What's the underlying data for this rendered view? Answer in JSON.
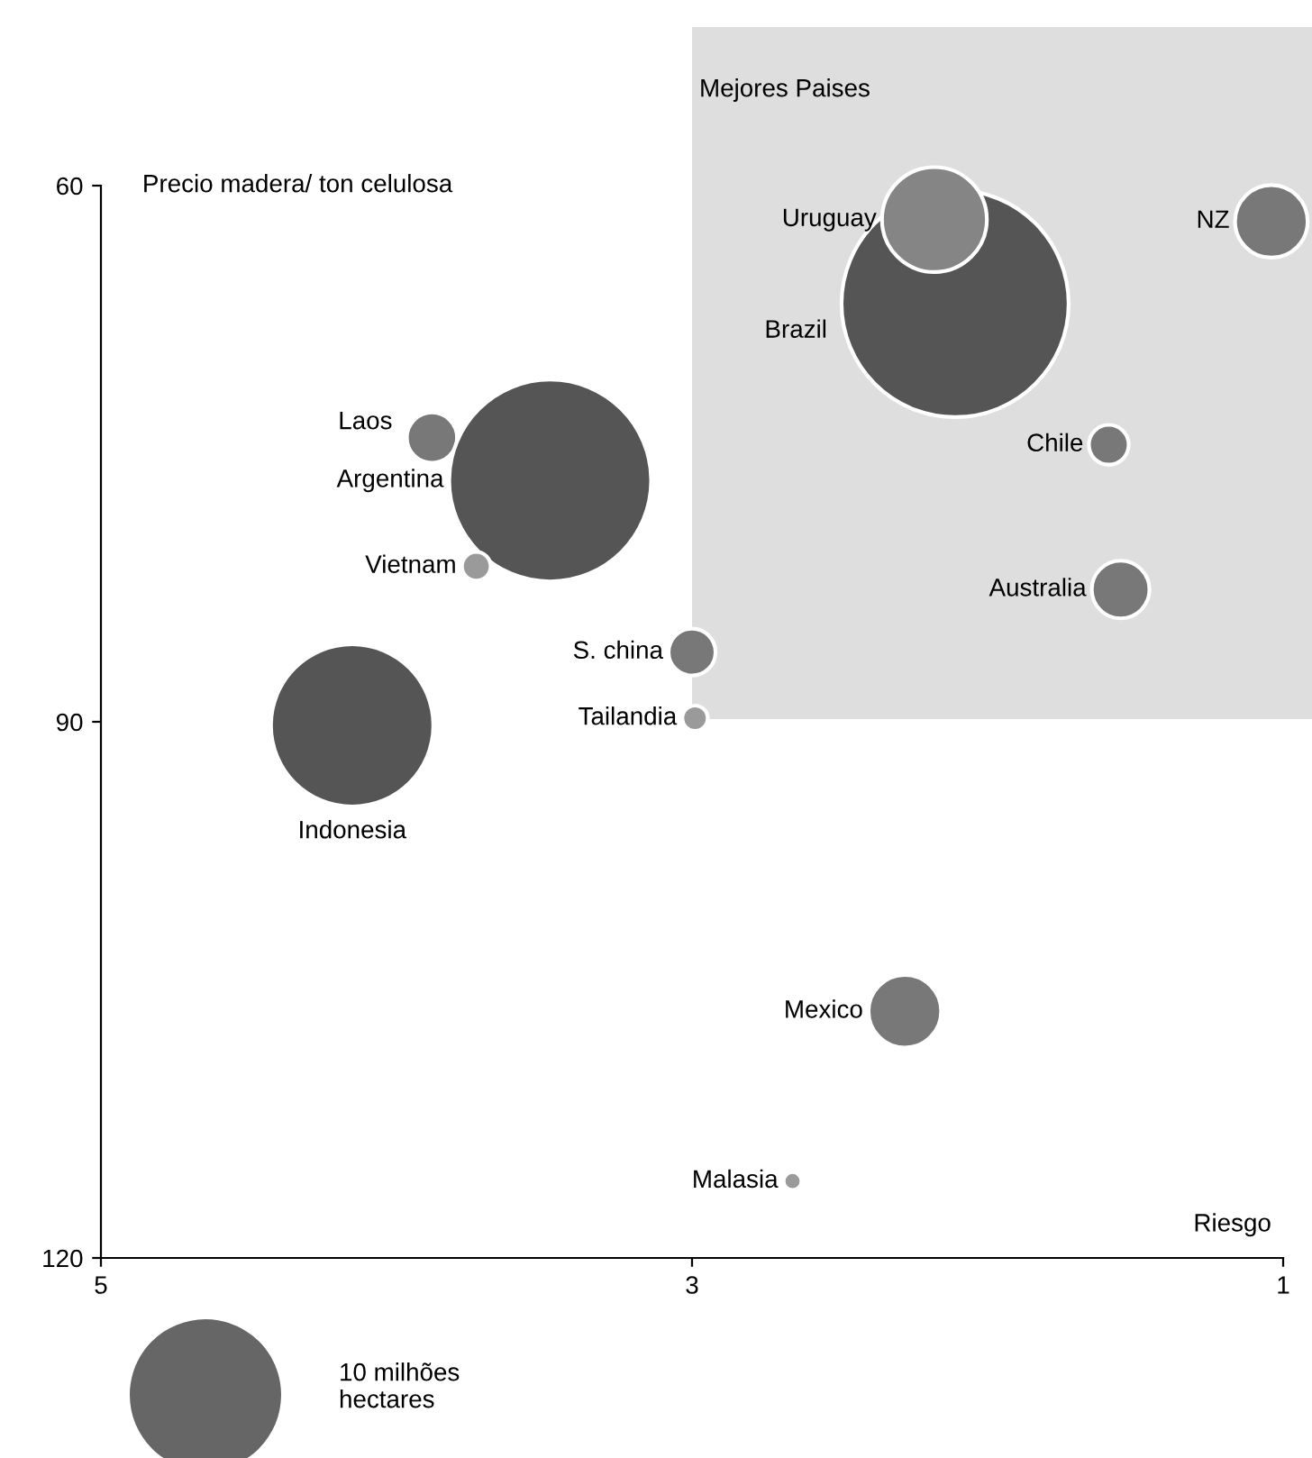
{
  "chart_data": {
    "type": "bubble",
    "ylabel": "Precio madera/ ton celulosa",
    "xlabel": "Riesgo",
    "xlim": [
      5,
      1
    ],
    "xticks": [
      5,
      3,
      1
    ],
    "ylim": [
      120,
      60
    ],
    "yticks": [
      60,
      90,
      120
    ],
    "grid": false,
    "annotations": [
      "Mejores Paises"
    ],
    "size_legend": [
      {
        "value": 10,
        "label": "10 milhões\nhectares"
      }
    ],
    "series": [
      {
        "name": "Laos",
        "color": "#787878",
        "x": [
          3.88
        ],
        "values": [
          74.1
        ],
        "sizes": [
          1.1
        ]
      },
      {
        "name": "Argentina",
        "color": "#555555",
        "x": [
          3.48
        ],
        "values": [
          76.5
        ],
        "sizes": [
          17.8
        ]
      },
      {
        "name": "Vietnam",
        "color": "#9a9a9a",
        "x": [
          3.73
        ],
        "values": [
          81.3
        ],
        "sizes": [
          0.36
        ]
      },
      {
        "name": "Indonesia",
        "color": "#555555",
        "x": [
          4.15
        ],
        "values": [
          90.2
        ],
        "sizes": [
          11.5
        ]
      },
      {
        "name": "S. china",
        "color": "#787878",
        "x": [
          3.0
        ],
        "values": [
          86.1
        ],
        "sizes": [
          0.96
        ]
      },
      {
        "name": "Tailandia",
        "color": "#9a9a9a",
        "x": [
          2.99
        ],
        "values": [
          89.8
        ],
        "sizes": [
          0.28
        ]
      },
      {
        "name": "Brazil",
        "color": "#555555",
        "x": [
          2.11
        ],
        "values": [
          66.6
        ],
        "sizes": [
          22.5
        ]
      },
      {
        "name": "Uruguay",
        "color": "#858585",
        "x": [
          2.18
        ],
        "values": [
          61.9
        ],
        "sizes": [
          4.8
        ]
      },
      {
        "name": "NZ",
        "color": "#787878",
        "x": [
          1.04
        ],
        "values": [
          62.0
        ],
        "sizes": [
          2.3
        ]
      },
      {
        "name": "Chile",
        "color": "#787878",
        "x": [
          1.59
        ],
        "values": [
          74.5
        ],
        "sizes": [
          0.69
        ]
      },
      {
        "name": "Australia",
        "color": "#787878",
        "x": [
          1.55
        ],
        "values": [
          82.6
        ],
        "sizes": [
          1.45
        ]
      },
      {
        "name": "Mexico",
        "color": "#787878",
        "x": [
          2.28
        ],
        "values": [
          106.2
        ],
        "sizes": [
          2.3
        ]
      },
      {
        "name": "Malasia",
        "color": "#9a9a9a",
        "x": [
          2.66
        ],
        "values": [
          115.7
        ],
        "sizes": [
          0.14
        ]
      }
    ]
  }
}
